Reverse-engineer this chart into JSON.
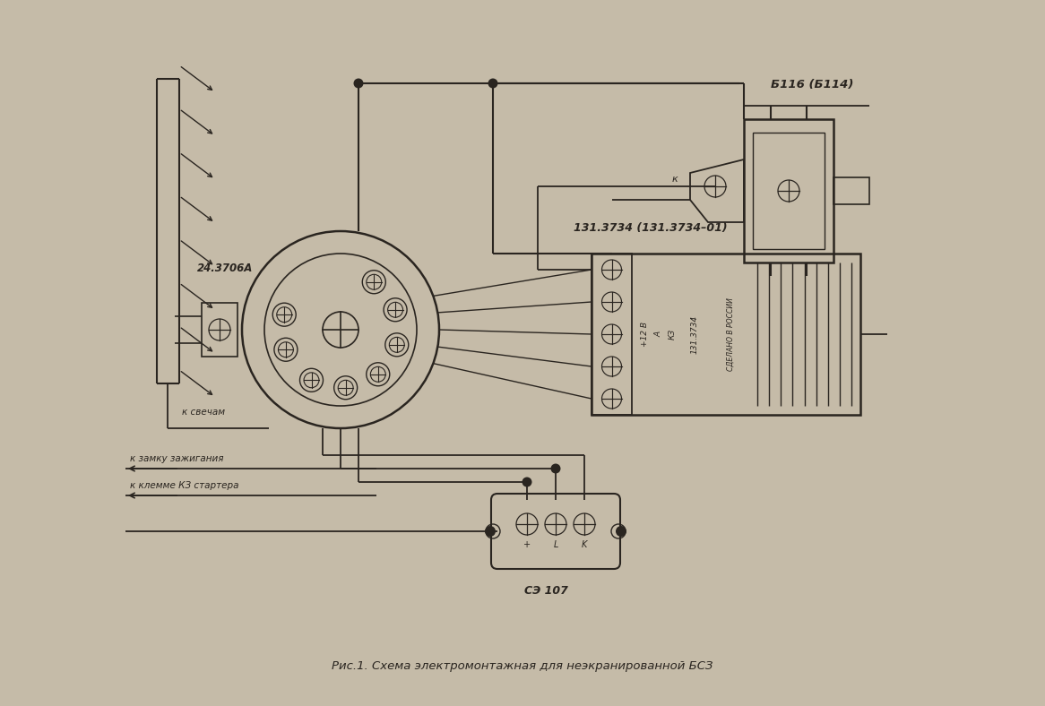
{
  "bg_color": "#c5bba8",
  "line_color": "#2a2520",
  "title": "Рис.1. Схема электромонтажная для неэкранированной БСЗ",
  "label_24_3706A": "24.3706А",
  "label_b116": "Б116 (Б114)",
  "label_131_3734": "131.3734 (131.3734–01)",
  "label_se107": "СЭ 107",
  "label_k_svecham": "к свечам",
  "label_k_zamku": "к замку зажигания",
  "label_k_klemme": "к клемме КЗ стартера",
  "label_k": "к",
  "label_plus": "+",
  "label_L": "L",
  "label_K_conn": "K",
  "label_12V": "+12 В",
  "label_A": "А",
  "label_KZ": "КЗ",
  "label_sdelano": "СДЕЛАНО В РОССИИ",
  "label_131_3734_small": "131.3734"
}
